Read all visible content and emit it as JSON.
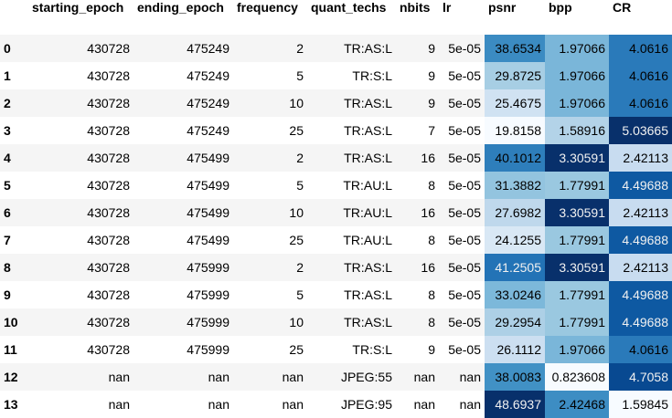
{
  "table": {
    "columns": [
      "starting_epoch",
      "ending_epoch",
      "frequency",
      "quant_techs",
      "nbits",
      "lr",
      "psnr",
      "bpp",
      "CR"
    ],
    "rows": [
      {
        "index": "0",
        "starting_epoch": "430728",
        "ending_epoch": "475249",
        "frequency": "2",
        "quant_techs": "TR:AS:L",
        "nbits": "9",
        "lr": "5e-05",
        "psnr": "38.6534",
        "bpp": "1.97066",
        "CR": "4.0616"
      },
      {
        "index": "1",
        "starting_epoch": "430728",
        "ending_epoch": "475249",
        "frequency": "5",
        "quant_techs": "TR:S:L",
        "nbits": "9",
        "lr": "5e-05",
        "psnr": "29.8725",
        "bpp": "1.97066",
        "CR": "4.0616"
      },
      {
        "index": "2",
        "starting_epoch": "430728",
        "ending_epoch": "475249",
        "frequency": "10",
        "quant_techs": "TR:AS:L",
        "nbits": "9",
        "lr": "5e-05",
        "psnr": "25.4675",
        "bpp": "1.97066",
        "CR": "4.0616"
      },
      {
        "index": "3",
        "starting_epoch": "430728",
        "ending_epoch": "475249",
        "frequency": "25",
        "quant_techs": "TR:AS:L",
        "nbits": "7",
        "lr": "5e-05",
        "psnr": "19.8158",
        "bpp": "1.58916",
        "CR": "5.03665"
      },
      {
        "index": "4",
        "starting_epoch": "430728",
        "ending_epoch": "475499",
        "frequency": "2",
        "quant_techs": "TR:AS:L",
        "nbits": "16",
        "lr": "5e-05",
        "psnr": "40.1012",
        "bpp": "3.30591",
        "CR": "2.42113"
      },
      {
        "index": "5",
        "starting_epoch": "430728",
        "ending_epoch": "475499",
        "frequency": "5",
        "quant_techs": "TR:AU:L",
        "nbits": "8",
        "lr": "5e-05",
        "psnr": "31.3882",
        "bpp": "1.77991",
        "CR": "4.49688"
      },
      {
        "index": "6",
        "starting_epoch": "430728",
        "ending_epoch": "475499",
        "frequency": "10",
        "quant_techs": "TR:AU:L",
        "nbits": "16",
        "lr": "5e-05",
        "psnr": "27.6982",
        "bpp": "3.30591",
        "CR": "2.42113"
      },
      {
        "index": "7",
        "starting_epoch": "430728",
        "ending_epoch": "475499",
        "frequency": "25",
        "quant_techs": "TR:AU:L",
        "nbits": "8",
        "lr": "5e-05",
        "psnr": "24.1255",
        "bpp": "1.77991",
        "CR": "4.49688"
      },
      {
        "index": "8",
        "starting_epoch": "430728",
        "ending_epoch": "475999",
        "frequency": "2",
        "quant_techs": "TR:AS:L",
        "nbits": "16",
        "lr": "5e-05",
        "psnr": "41.2505",
        "bpp": "3.30591",
        "CR": "2.42113"
      },
      {
        "index": "9",
        "starting_epoch": "430728",
        "ending_epoch": "475999",
        "frequency": "5",
        "quant_techs": "TR:AS:L",
        "nbits": "8",
        "lr": "5e-05",
        "psnr": "33.0246",
        "bpp": "1.77991",
        "CR": "4.49688"
      },
      {
        "index": "10",
        "starting_epoch": "430728",
        "ending_epoch": "475999",
        "frequency": "10",
        "quant_techs": "TR:AS:L",
        "nbits": "8",
        "lr": "5e-05",
        "psnr": "29.2954",
        "bpp": "1.77991",
        "CR": "4.49688"
      },
      {
        "index": "11",
        "starting_epoch": "430728",
        "ending_epoch": "475999",
        "frequency": "25",
        "quant_techs": "TR:S:L",
        "nbits": "9",
        "lr": "5e-05",
        "psnr": "26.1112",
        "bpp": "1.97066",
        "CR": "4.0616"
      },
      {
        "index": "12",
        "starting_epoch": "nan",
        "ending_epoch": "nan",
        "frequency": "nan",
        "quant_techs": "JPEG:55",
        "nbits": "nan",
        "lr": "nan",
        "psnr": "38.0083",
        "bpp": "0.823608",
        "CR": "4.7058"
      },
      {
        "index": "13",
        "starting_epoch": "nan",
        "ending_epoch": "nan",
        "frequency": "nan",
        "quant_techs": "JPEG:95",
        "nbits": "nan",
        "lr": "nan",
        "psnr": "48.6937",
        "bpp": "2.42468",
        "CR": "1.59845"
      }
    ],
    "heat_columns": [
      "psnr",
      "bpp",
      "CR"
    ],
    "colors": {
      "stripe": "#f5f5f5",
      "header": "#ffffff",
      "colormap": "Blues",
      "text_on_light": "#000000",
      "text_on_dark": "#f1f1f1"
    }
  }
}
